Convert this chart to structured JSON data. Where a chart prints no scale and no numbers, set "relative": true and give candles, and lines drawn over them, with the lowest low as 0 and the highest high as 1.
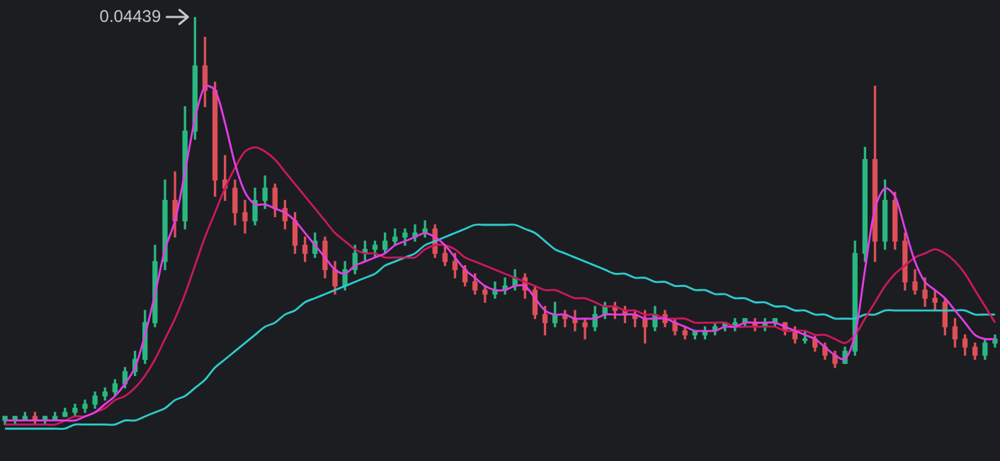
{
  "chart_data": {
    "type": "candlestick",
    "relative": true,
    "categories": [
      null,
      null,
      null,
      null,
      null,
      null,
      null,
      null,
      null,
      null,
      null,
      null,
      null,
      null,
      null,
      null,
      null,
      null,
      null,
      null,
      null,
      null,
      null,
      null,
      null,
      null,
      null,
      null,
      null,
      null,
      null,
      null,
      null,
      null,
      null,
      null,
      null,
      null,
      null,
      null,
      null,
      null,
      null,
      null,
      null,
      null,
      null,
      null,
      null,
      null,
      null,
      null,
      null,
      null,
      null,
      null,
      null,
      null,
      null,
      null,
      null,
      null,
      null,
      null,
      null,
      null,
      null,
      null,
      null,
      null,
      null,
      null,
      null,
      null,
      null,
      null,
      null,
      null,
      null,
      null,
      null,
      null,
      null,
      null,
      null,
      null,
      null,
      null,
      null,
      null,
      null,
      null,
      null,
      null,
      null,
      null,
      null,
      null,
      null,
      null
    ],
    "ohlc": [
      [
        0.01,
        0.02,
        0,
        0.02
      ],
      [
        0.01,
        0.02,
        0,
        0.02
      ],
      [
        0.01,
        0.03,
        0.01,
        0.02
      ],
      [
        0.02,
        0.03,
        0,
        0.01
      ],
      [
        0.01,
        0.02,
        0,
        0.02
      ],
      [
        0.01,
        0.03,
        0.01,
        0.02
      ],
      [
        0.02,
        0.04,
        0.02,
        0.03
      ],
      [
        0.03,
        0.05,
        0.02,
        0.04
      ],
      [
        0.04,
        0.06,
        0.03,
        0.05
      ],
      [
        0.05,
        0.08,
        0.04,
        0.07
      ],
      [
        0.07,
        0.09,
        0.06,
        0.08
      ],
      [
        0.08,
        0.11,
        0.07,
        0.1
      ],
      [
        0.1,
        0.14,
        0.09,
        0.13
      ],
      [
        0.13,
        0.18,
        0.12,
        0.16
      ],
      [
        0.16,
        0.28,
        0.15,
        0.25
      ],
      [
        0.25,
        0.44,
        0.24,
        0.4
      ],
      [
        0.4,
        0.6,
        0.38,
        0.55
      ],
      [
        0.55,
        0.62,
        0.46,
        0.5
      ],
      [
        0.5,
        0.78,
        0.48,
        0.72
      ],
      [
        0.72,
        1,
        0.7,
        0.88
      ],
      [
        0.88,
        0.95,
        0.78,
        0.82
      ],
      [
        0.82,
        0.84,
        0.56,
        0.6
      ],
      [
        0.6,
        0.66,
        0.55,
        0.58
      ],
      [
        0.58,
        0.6,
        0.49,
        0.52
      ],
      [
        0.52,
        0.55,
        0.47,
        0.5
      ],
      [
        0.5,
        0.58,
        0.49,
        0.55
      ],
      [
        0.55,
        0.61,
        0.53,
        0.58
      ],
      [
        0.58,
        0.59,
        0.51,
        0.53
      ],
      [
        0.53,
        0.55,
        0.48,
        0.5
      ],
      [
        0.5,
        0.52,
        0.42,
        0.44
      ],
      [
        0.44,
        0.46,
        0.4,
        0.42
      ],
      [
        0.42,
        0.47,
        0.41,
        0.45
      ],
      [
        0.45,
        0.46,
        0.36,
        0.38
      ],
      [
        0.38,
        0.4,
        0.32,
        0.34
      ],
      [
        0.34,
        0.4,
        0.33,
        0.38
      ],
      [
        0.38,
        0.44,
        0.37,
        0.42
      ],
      [
        0.42,
        0.45,
        0.4,
        0.43
      ],
      [
        0.43,
        0.45,
        0.41,
        0.44
      ],
      [
        0.43,
        0.47,
        0.42,
        0.45
      ],
      [
        0.45,
        0.48,
        0.44,
        0.46
      ],
      [
        0.46,
        0.48,
        0.44,
        0.47
      ],
      [
        0.46,
        0.49,
        0.45,
        0.47
      ],
      [
        0.47,
        0.5,
        0.46,
        0.48
      ],
      [
        0.48,
        0.49,
        0.41,
        0.42
      ],
      [
        0.42,
        0.44,
        0.39,
        0.4
      ],
      [
        0.4,
        0.42,
        0.36,
        0.38
      ],
      [
        0.38,
        0.39,
        0.34,
        0.35
      ],
      [
        0.35,
        0.37,
        0.32,
        0.33
      ],
      [
        0.33,
        0.34,
        0.3,
        0.32
      ],
      [
        0.32,
        0.35,
        0.31,
        0.33
      ],
      [
        0.33,
        0.36,
        0.32,
        0.34
      ],
      [
        0.34,
        0.38,
        0.33,
        0.36
      ],
      [
        0.36,
        0.37,
        0.31,
        0.33
      ],
      [
        0.33,
        0.34,
        0.26,
        0.27
      ],
      [
        0.27,
        0.29,
        0.22,
        0.25
      ],
      [
        0.25,
        0.3,
        0.24,
        0.27
      ],
      [
        0.27,
        0.28,
        0.24,
        0.26
      ],
      [
        0.26,
        0.28,
        0.23,
        0.25
      ],
      [
        0.25,
        0.26,
        0.21,
        0.24
      ],
      [
        0.24,
        0.29,
        0.23,
        0.27
      ],
      [
        0.27,
        0.3,
        0.26,
        0.29
      ],
      [
        0.29,
        0.3,
        0.26,
        0.28
      ],
      [
        0.28,
        0.29,
        0.25,
        0.27
      ],
      [
        0.27,
        0.28,
        0.24,
        0.26
      ],
      [
        0.26,
        0.28,
        0.2,
        0.24
      ],
      [
        0.24,
        0.29,
        0.23,
        0.27
      ],
      [
        0.27,
        0.28,
        0.24,
        0.25
      ],
      [
        0.25,
        0.26,
        0.22,
        0.23
      ],
      [
        0.23,
        0.24,
        0.21,
        0.22
      ],
      [
        0.22,
        0.23,
        0.21,
        0.23
      ],
      [
        0.22,
        0.24,
        0.21,
        0.23
      ],
      [
        0.23,
        0.25,
        0.22,
        0.24
      ],
      [
        0.24,
        0.25,
        0.23,
        0.25
      ],
      [
        0.24,
        0.26,
        0.23,
        0.25
      ],
      [
        0.25,
        0.26,
        0.24,
        0.26
      ],
      [
        0.25,
        0.26,
        0.23,
        0.24
      ],
      [
        0.24,
        0.26,
        0.23,
        0.25
      ],
      [
        0.25,
        0.26,
        0.24,
        0.26
      ],
      [
        0.25,
        0.25,
        0.22,
        0.23
      ],
      [
        0.23,
        0.24,
        0.2,
        0.21
      ],
      [
        0.21,
        0.23,
        0.2,
        0.21
      ],
      [
        0.21,
        0.22,
        0.18,
        0.19
      ],
      [
        0.19,
        0.2,
        0.16,
        0.17
      ],
      [
        0.17,
        0.18,
        0.14,
        0.15
      ],
      [
        0.15,
        0.19,
        0.15,
        0.18
      ],
      [
        0.18,
        0.45,
        0.17,
        0.42
      ],
      [
        0.42,
        0.68,
        0.4,
        0.65
      ],
      [
        0.65,
        0.83,
        0.4,
        0.45
      ],
      [
        0.45,
        0.6,
        0.43,
        0.55
      ],
      [
        0.55,
        0.57,
        0.43,
        0.45
      ],
      [
        0.45,
        0.47,
        0.33,
        0.35
      ],
      [
        0.35,
        0.38,
        0.32,
        0.33
      ],
      [
        0.33,
        0.36,
        0.29,
        0.31
      ],
      [
        0.31,
        0.33,
        0.28,
        0.3
      ],
      [
        0.3,
        0.31,
        0.22,
        0.24
      ],
      [
        0.24,
        0.26,
        0.19,
        0.21
      ],
      [
        0.21,
        0.22,
        0.17,
        0.19
      ],
      [
        0.19,
        0.2,
        0.16,
        0.17
      ],
      [
        0.17,
        0.21,
        0.16,
        0.2
      ],
      [
        0.2,
        0.22,
        0.19,
        0.21
      ]
    ],
    "series": [
      {
        "type": "line",
        "color": "#e63ce6",
        "values": [
          0.01,
          0.01,
          0.01,
          0.01,
          0.01,
          0.01,
          0.01,
          0.01,
          0.02,
          0.03,
          0.05,
          0.07,
          0.1,
          0.14,
          0.22,
          0.32,
          0.43,
          0.5,
          0.62,
          0.75,
          0.83,
          0.82,
          0.74,
          0.64,
          0.57,
          0.54,
          0.54,
          0.53,
          0.52,
          0.5,
          0.47,
          0.44,
          0.41,
          0.38,
          0.37,
          0.39,
          0.4,
          0.41,
          0.42,
          0.44,
          0.45,
          0.46,
          0.47,
          0.46,
          0.44,
          0.41,
          0.38,
          0.36,
          0.34,
          0.33,
          0.33,
          0.34,
          0.34,
          0.31,
          0.28,
          0.27,
          0.27,
          0.26,
          0.26,
          0.26,
          0.27,
          0.27,
          0.27,
          0.27,
          0.26,
          0.26,
          0.26,
          0.25,
          0.24,
          0.23,
          0.23,
          0.23,
          0.24,
          0.24,
          0.25,
          0.25,
          0.25,
          0.25,
          0.24,
          0.23,
          0.22,
          0.21,
          0.19,
          0.17,
          0.16,
          0.22,
          0.38,
          0.53,
          0.58,
          0.56,
          0.48,
          0.4,
          0.35,
          0.33,
          0.31,
          0.28,
          0.25,
          0.22,
          0.21,
          0.21
        ]
      },
      {
        "type": "line",
        "color": "#c9195e",
        "values": [
          0,
          0,
          0,
          0,
          0,
          0,
          0.01,
          0.02,
          0.02,
          0.03,
          0.04,
          0.06,
          0.07,
          0.09,
          0.12,
          0.16,
          0.21,
          0.26,
          0.32,
          0.39,
          0.46,
          0.52,
          0.58,
          0.63,
          0.67,
          0.68,
          0.67,
          0.65,
          0.62,
          0.59,
          0.56,
          0.53,
          0.5,
          0.47,
          0.45,
          0.43,
          0.42,
          0.42,
          0.41,
          0.41,
          0.41,
          0.41,
          0.43,
          0.44,
          0.44,
          0.43,
          0.41,
          0.4,
          0.39,
          0.38,
          0.37,
          0.36,
          0.35,
          0.34,
          0.33,
          0.33,
          0.32,
          0.31,
          0.31,
          0.3,
          0.29,
          0.29,
          0.28,
          0.28,
          0.27,
          0.27,
          0.26,
          0.26,
          0.26,
          0.25,
          0.25,
          0.25,
          0.25,
          0.24,
          0.24,
          0.24,
          0.24,
          0.24,
          0.23,
          0.23,
          0.23,
          0.22,
          0.22,
          0.21,
          0.2,
          0.22,
          0.26,
          0.3,
          0.34,
          0.37,
          0.39,
          0.41,
          0.42,
          0.43,
          0.42,
          0.4,
          0.37,
          0.33,
          0.29,
          0.25
        ]
      },
      {
        "type": "line",
        "color": "#2ccbcb",
        "values": [
          -0.01,
          -0.01,
          -0.01,
          -0.01,
          -0.01,
          -0.01,
          -0.01,
          0,
          0,
          0,
          0,
          0,
          0.01,
          0.01,
          0.02,
          0.03,
          0.04,
          0.06,
          0.07,
          0.09,
          0.11,
          0.14,
          0.16,
          0.18,
          0.2,
          0.22,
          0.24,
          0.25,
          0.27,
          0.28,
          0.3,
          0.31,
          0.32,
          0.33,
          0.34,
          0.35,
          0.36,
          0.37,
          0.39,
          0.4,
          0.41,
          0.42,
          0.44,
          0.45,
          0.46,
          0.47,
          0.48,
          0.49,
          0.49,
          0.49,
          0.49,
          0.49,
          0.48,
          0.47,
          0.45,
          0.43,
          0.42,
          0.41,
          0.4,
          0.39,
          0.38,
          0.37,
          0.37,
          0.36,
          0.36,
          0.35,
          0.35,
          0.34,
          0.34,
          0.33,
          0.33,
          0.32,
          0.32,
          0.31,
          0.31,
          0.3,
          0.3,
          0.29,
          0.29,
          0.28,
          0.28,
          0.27,
          0.27,
          0.26,
          0.26,
          0.26,
          0.27,
          0.27,
          0.28,
          0.28,
          0.28,
          0.28,
          0.28,
          0.28,
          0.28,
          0.28,
          0.28,
          0.27,
          0.27,
          0.27
        ]
      }
    ],
    "annotations": [
      "0.04439"
    ]
  }
}
